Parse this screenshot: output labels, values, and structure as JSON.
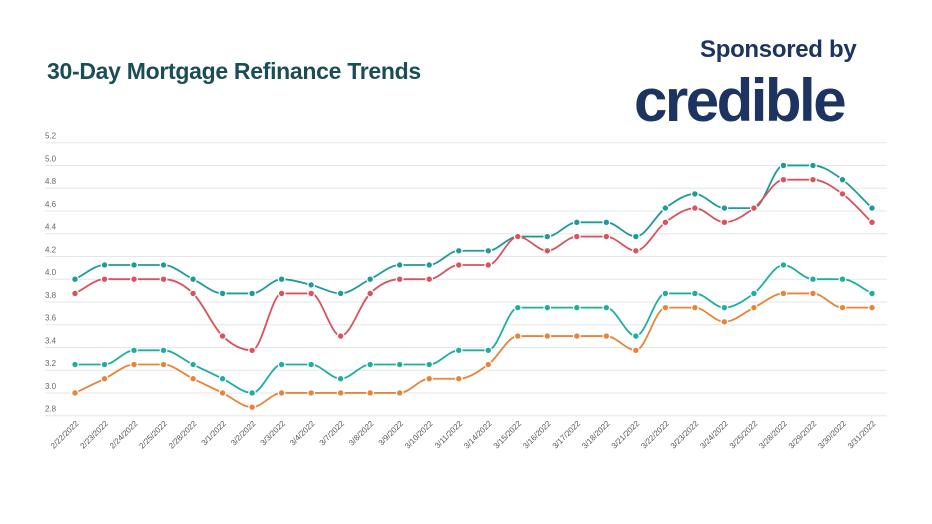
{
  "header": {
    "title": "30-Day Mortgage Refinance Trends",
    "sponsor_label": "Sponsored by",
    "logo_text": "credible"
  },
  "chart_data": {
    "type": "line",
    "title": "30-Day Mortgage Refinance Trends",
    "xlabel": "",
    "ylabel": "",
    "ylim": [
      2.8,
      5.2
    ],
    "yticks": [
      2.8,
      3.0,
      3.2,
      3.4,
      3.6,
      3.8,
      4.0,
      4.2,
      4.4,
      4.6,
      4.8,
      5.0,
      5.2
    ],
    "grid": true,
    "categories": [
      "2/22/2022",
      "2/23/2022",
      "2/24/2022",
      "2/25/2022",
      "2/28/2022",
      "3/1/2022",
      "3/2/2022",
      "3/3/2022",
      "3/4/2022",
      "3/7/2022",
      "3/8/2022",
      "3/9/2022",
      "3/10/2022",
      "3/11/2022",
      "3/14/2022",
      "3/15/2022",
      "3/16/2022",
      "3/17/2022",
      "3/18/2022",
      "3/21/2022",
      "3/22/2022",
      "3/23/2022",
      "3/24/2022",
      "3/25/2022",
      "3/28/2022",
      "3/29/2022",
      "3/30/2022",
      "3/31/2022"
    ],
    "series": [
      {
        "color": "#1e9a9b",
        "values": [
          4.0,
          4.125,
          4.125,
          4.125,
          4.0,
          3.875,
          3.875,
          4.0,
          3.95,
          3.875,
          4.0,
          4.125,
          4.125,
          4.25,
          4.25,
          4.375,
          4.375,
          4.5,
          4.5,
          4.375,
          4.625,
          4.75,
          4.625,
          4.625,
          5.0,
          5.0,
          4.875,
          4.625
        ]
      },
      {
        "color": "#d9535d",
        "values": [
          3.875,
          4.0,
          4.0,
          4.0,
          3.875,
          3.5,
          3.375,
          3.875,
          3.875,
          3.5,
          3.875,
          4.0,
          4.0,
          4.125,
          4.125,
          4.375,
          4.25,
          4.375,
          4.375,
          4.25,
          4.5,
          4.625,
          4.5,
          4.625,
          4.875,
          4.875,
          4.75,
          4.5
        ]
      },
      {
        "color": "#1eae9f",
        "values": [
          3.25,
          3.25,
          3.375,
          3.375,
          3.25,
          3.125,
          3.0,
          3.25,
          3.25,
          3.125,
          3.25,
          3.25,
          3.25,
          3.375,
          3.375,
          3.75,
          3.75,
          3.75,
          3.75,
          3.5,
          3.875,
          3.875,
          3.75,
          3.875,
          4.125,
          4.0,
          4.0,
          3.875
        ]
      },
      {
        "color": "#e8843a",
        "values": [
          3.0,
          3.125,
          3.25,
          3.25,
          3.125,
          3.0,
          2.875,
          3.0,
          3.0,
          3.0,
          3.0,
          3.0,
          3.125,
          3.125,
          3.25,
          3.5,
          3.5,
          3.5,
          3.5,
          3.375,
          3.75,
          3.75,
          3.625,
          3.75,
          3.875,
          3.875,
          3.75,
          3.75
        ]
      }
    ]
  }
}
